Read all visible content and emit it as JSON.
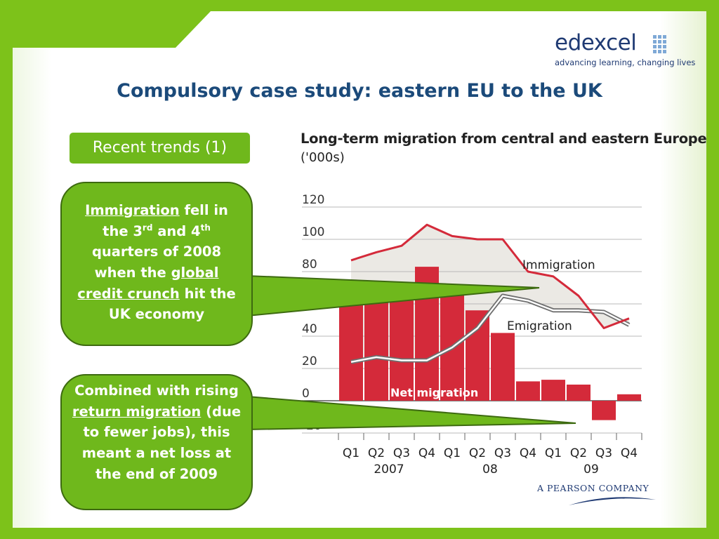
{
  "logo": {
    "wordmark": "edexcel",
    "tagline": "advancing learning, changing lives"
  },
  "title": "Compulsory case study: eastern EU to the UK",
  "tag": "Recent trends (1)",
  "callout1": {
    "p1": "Immigration",
    "p2": " fell in the 3",
    "p3": "rd",
    "p4": " and 4",
    "p5": "th",
    "p6": " quarters of 2008 when the ",
    "p7": "global credit crunch",
    "p8": " hit the UK economy"
  },
  "callout2": {
    "p1": "Combined with rising ",
    "p2": "return migration",
    "p3": " (due to fewer jobs), this meant a net loss at the end of 2009"
  },
  "chart_data": {
    "type": "bar",
    "title": "Long-term migration from central and eastern Europe",
    "unit_label": "('000s)",
    "categories": [
      "Q1",
      "Q2",
      "Q3",
      "Q4",
      "Q1",
      "Q2",
      "Q3",
      "Q4",
      "Q1",
      "Q2",
      "Q3",
      "Q4"
    ],
    "year_labels": [
      "2007",
      "08",
      "09"
    ],
    "ylim": [
      -20,
      120
    ],
    "yticks": [
      -20,
      0,
      20,
      40,
      60,
      80,
      100,
      120
    ],
    "grid": true,
    "series": [
      {
        "name": "Net migration",
        "kind": "bar",
        "color": "#d42a3a",
        "values": [
          64,
          62,
          62,
          83,
          68,
          56,
          42,
          12,
          13,
          10,
          -12,
          4
        ]
      },
      {
        "name": "Immigration",
        "kind": "line",
        "color": "#d42a3a",
        "values": [
          87,
          92,
          96,
          109,
          102,
          100,
          100,
          80,
          77,
          65,
          45,
          51
        ]
      },
      {
        "name": "Emigration",
        "kind": "line",
        "color": "#777777",
        "values": [
          24,
          27,
          25,
          25,
          33,
          45,
          65,
          62,
          56,
          56,
          55,
          47
        ]
      }
    ]
  },
  "pearson": "A PEARSON COMPANY"
}
